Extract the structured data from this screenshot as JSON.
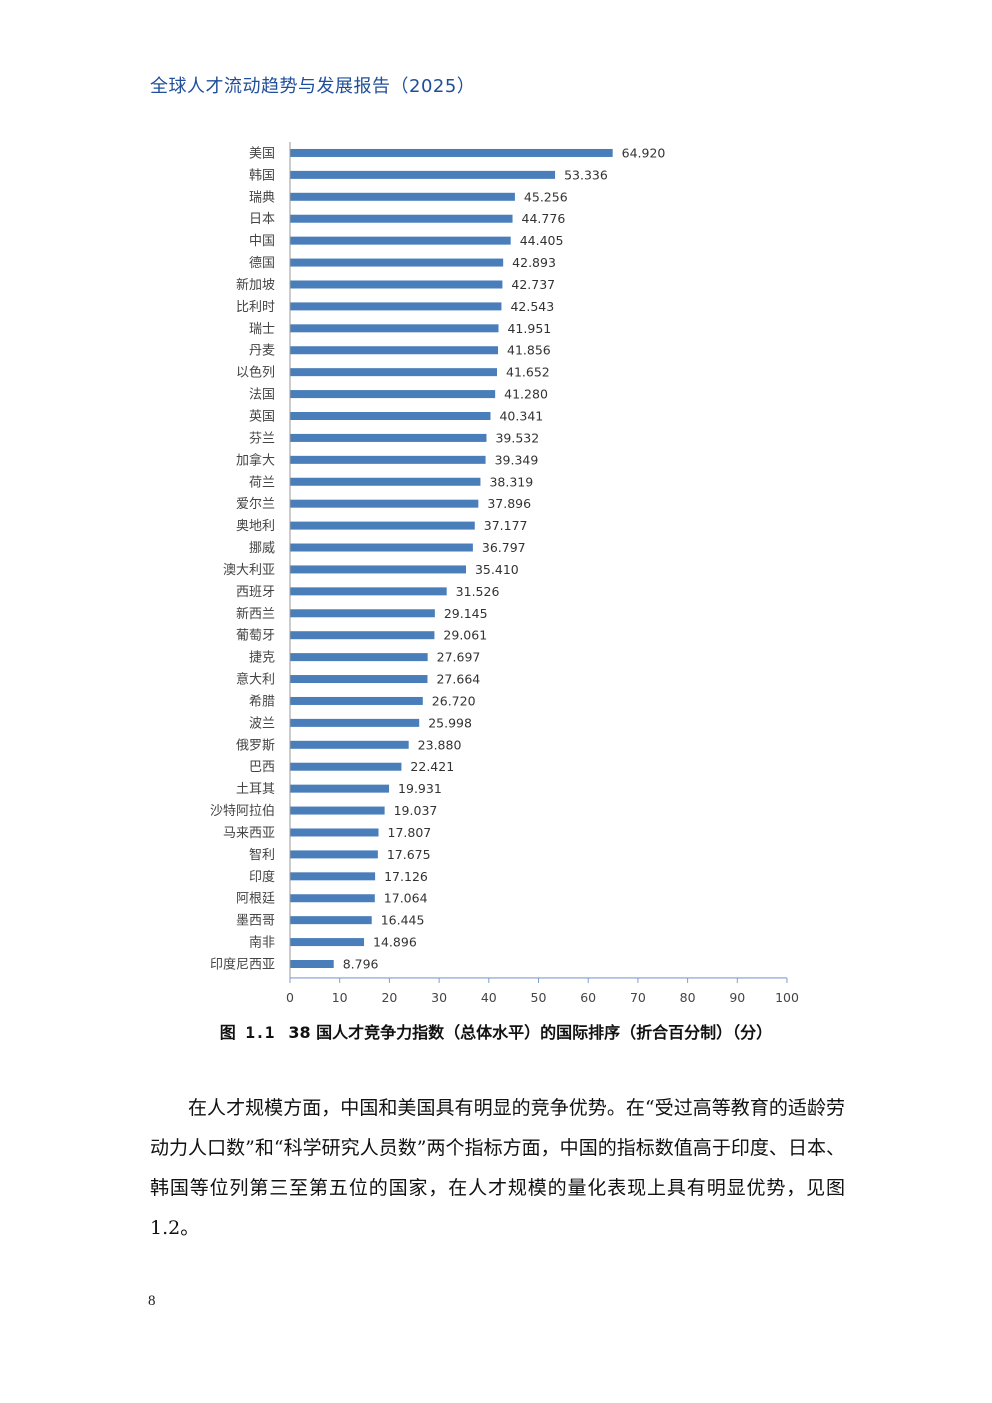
{
  "header": {
    "running_title": "全球人才流动趋势与发展报告（2025）"
  },
  "chart_data": {
    "type": "bar",
    "orientation": "horizontal",
    "categories": [
      "美国",
      "韩国",
      "瑞典",
      "日本",
      "中国",
      "德国",
      "新加坡",
      "比利时",
      "瑞士",
      "丹麦",
      "以色列",
      "法国",
      "英国",
      "芬兰",
      "加拿大",
      "荷兰",
      "爱尔兰",
      "奥地利",
      "挪威",
      "澳大利亚",
      "西班牙",
      "新西兰",
      "葡萄牙",
      "捷克",
      "意大利",
      "希腊",
      "波兰",
      "俄罗斯",
      "巴西",
      "土耳其",
      "沙特阿拉伯",
      "马来西亚",
      "智利",
      "印度",
      "阿根廷",
      "墨西哥",
      "南非",
      "印度尼西亚"
    ],
    "values": [
      64.92,
      53.336,
      45.256,
      44.776,
      44.405,
      42.893,
      42.737,
      42.543,
      41.951,
      41.856,
      41.652,
      41.28,
      40.341,
      39.532,
      39.349,
      38.319,
      37.896,
      37.177,
      36.797,
      35.41,
      31.526,
      29.145,
      29.061,
      27.697,
      27.664,
      26.72,
      25.998,
      23.88,
      22.421,
      19.931,
      19.037,
      17.807,
      17.675,
      17.126,
      17.064,
      16.445,
      14.896,
      8.796
    ],
    "value_labels": [
      "64.920",
      "53.336",
      "45.256",
      "44.776",
      "44.405",
      "42.893",
      "42.737",
      "42.543",
      "41.951",
      "41.856",
      "41.652",
      "41.280",
      "40.341",
      "39.532",
      "39.349",
      "38.319",
      "37.896",
      "37.177",
      "36.797",
      "35.410",
      "31.526",
      "29.145",
      "29.061",
      "27.697",
      "27.664",
      "26.720",
      "25.998",
      "23.880",
      "22.421",
      "19.931",
      "19.037",
      "17.807",
      "17.675",
      "17.126",
      "17.064",
      "16.445",
      "14.896",
      "8.796"
    ],
    "xlim": [
      0,
      100
    ],
    "x_ticks": [
      "0",
      "10",
      "20",
      "30",
      "40",
      "50",
      "60",
      "70",
      "80",
      "90",
      "100"
    ],
    "grid": false,
    "bar_color": "#4a7ebb"
  },
  "caption": {
    "figure_number": "图 1.1",
    "text": "38 国人才竞争力指数（总体水平）的国际排序（折合百分制）（分）"
  },
  "body": {
    "paragraph": "在人才规模方面，中国和美国具有明显的竞争优势。在“受过高等教育的适龄劳动力人口数”和“科学研究人员数”两个指标方面，中国的指标数值高于印度、日本、韩国等位列第三至第五位的国家，在人才规模的量化表现上具有明显优势，见图 1.2。"
  },
  "footer": {
    "page_number": "8"
  }
}
